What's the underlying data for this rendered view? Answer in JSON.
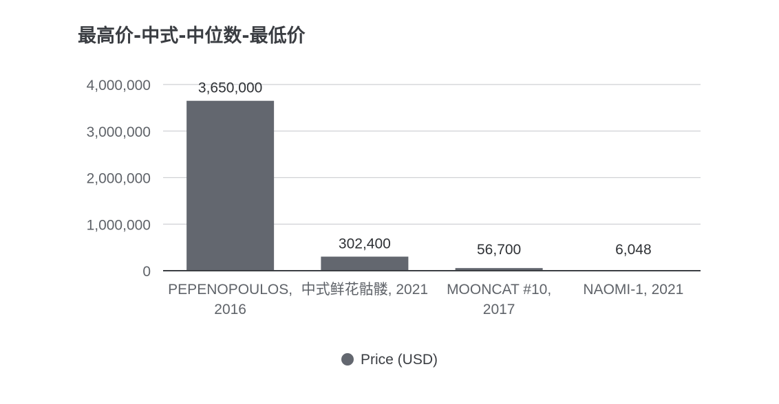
{
  "title": "最高价-中式-中位数-最低价",
  "chart_data": {
    "type": "bar",
    "title": "最高价-中式-中位数-最低价",
    "categories": [
      "PEPENOPOULOS, 2016",
      "中式鲜花骷髅, 2021",
      "MOONCAT #10, 2017",
      "NAOMI-1, 2021"
    ],
    "series": [
      {
        "name": "Price (USD)",
        "values": [
          3650000,
          302400,
          56700,
          6048
        ],
        "color": "#63676f"
      }
    ],
    "data_labels": [
      "3,650,000",
      "302,400",
      "56,700",
      "6,048"
    ],
    "ylim": [
      0,
      4000000
    ],
    "yticks": [
      0,
      1000000,
      2000000,
      3000000,
      4000000
    ],
    "ytick_labels": [
      "0",
      "1,000,000",
      "2,000,000",
      "3,000,000",
      "4,000,000"
    ],
    "grid": true,
    "legend": "bottom",
    "xlabel": "",
    "ylabel": ""
  }
}
